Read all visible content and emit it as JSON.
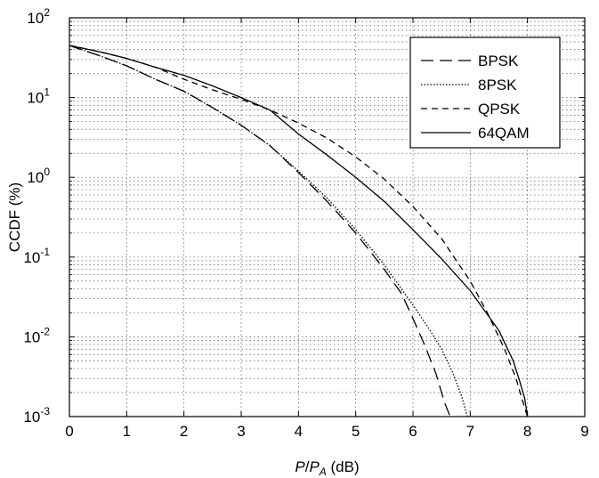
{
  "chart_data": {
    "type": "line",
    "title": "",
    "xlabel": {
      "italic_main": "P",
      "slash": "/",
      "italic_sub_base": "P",
      "subscript": "A",
      "unit": " (dB)"
    },
    "ylabel": "CCDF (%)",
    "xlim": [
      0,
      9
    ],
    "ylim": [
      0.001,
      100
    ],
    "yscale": "log",
    "grid": true,
    "x_ticks": [
      "0",
      "1",
      "2",
      "3",
      "4",
      "5",
      "6",
      "7",
      "8",
      "9"
    ],
    "y_ticks": [
      {
        "base": "10",
        "exp": "-3"
      },
      {
        "base": "10",
        "exp": "-2"
      },
      {
        "base": "10",
        "exp": "-1"
      },
      {
        "base": "10",
        "exp": "0"
      },
      {
        "base": "10",
        "exp": "1"
      },
      {
        "base": "10",
        "exp": "2"
      }
    ],
    "legend_position": "top-right",
    "series": [
      {
        "name": "BPSK",
        "dash": "long-dash",
        "x": [
          0,
          0.5,
          1,
          1.5,
          2,
          2.5,
          3,
          3.5,
          4,
          4.5,
          5,
          5.5,
          5.8,
          6.0,
          6.2,
          6.4,
          6.55,
          6.65
        ],
        "y": [
          45,
          34,
          25,
          17,
          12,
          7.5,
          4.5,
          2.5,
          1.15,
          0.5,
          0.2,
          0.07,
          0.035,
          0.017,
          0.008,
          0.0035,
          0.0015,
          0.001
        ]
      },
      {
        "name": "8PSK",
        "dash": "dotted",
        "x": [
          0,
          0.5,
          1,
          1.5,
          2,
          2.5,
          3,
          3.5,
          4,
          4.5,
          5,
          5.5,
          6.0,
          6.3,
          6.5,
          6.7,
          6.85,
          6.95
        ],
        "y": [
          45,
          34,
          25,
          17,
          12,
          7.5,
          4.5,
          2.5,
          1.2,
          0.55,
          0.22,
          0.08,
          0.025,
          0.012,
          0.007,
          0.0035,
          0.0018,
          0.001
        ]
      },
      {
        "name": "QPSK",
        "dash": "short-dash",
        "x": [
          0,
          0.5,
          1,
          1.5,
          2,
          2.5,
          3,
          3.5,
          4,
          4.5,
          5,
          5.5,
          6,
          6.5,
          7,
          7.3,
          7.6,
          7.8,
          7.9,
          8.0
        ],
        "y": [
          45,
          38,
          31,
          24,
          17,
          12.5,
          9.5,
          7,
          4.8,
          3.1,
          1.8,
          0.95,
          0.43,
          0.17,
          0.05,
          0.02,
          0.007,
          0.003,
          0.0017,
          0.001
        ]
      },
      {
        "name": "64QAM",
        "dash": "solid",
        "x": [
          0,
          0.5,
          1,
          1.5,
          2,
          2.5,
          3,
          3.5,
          4,
          4.5,
          5,
          5.5,
          6,
          6.5,
          7,
          7.5,
          7.75,
          7.85,
          7.95,
          8.0
        ],
        "y": [
          45,
          38,
          31,
          24,
          19,
          14,
          10,
          7,
          3.5,
          1.9,
          1.0,
          0.5,
          0.22,
          0.095,
          0.038,
          0.012,
          0.005,
          0.003,
          0.0017,
          0.001
        ]
      }
    ]
  }
}
